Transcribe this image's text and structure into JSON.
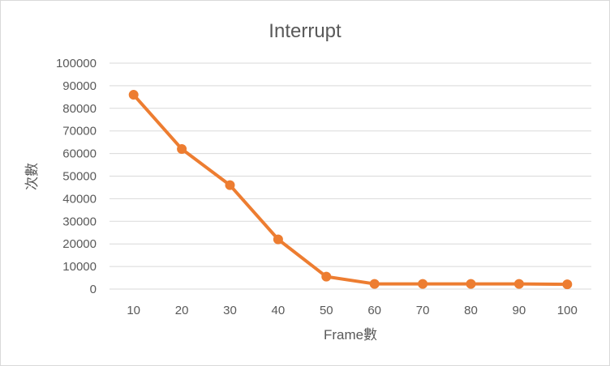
{
  "chart_data": {
    "type": "line",
    "title": "Interrupt",
    "xlabel": "Frame數",
    "ylabel": "次數",
    "categories": [
      "10",
      "20",
      "30",
      "40",
      "50",
      "60",
      "70",
      "80",
      "90",
      "100"
    ],
    "series": [
      {
        "values": [
          86000,
          62000,
          46000,
          22000,
          5500,
          2300,
          2300,
          2300,
          2300,
          2100
        ]
      }
    ],
    "ylim": [
      0,
      100000
    ],
    "y_ticks": [
      "0",
      "10000",
      "20000",
      "30000",
      "40000",
      "50000",
      "60000",
      "70000",
      "80000",
      "90000",
      "100000"
    ],
    "grid": true,
    "legend": "none",
    "series_color": "#ED7D31"
  }
}
